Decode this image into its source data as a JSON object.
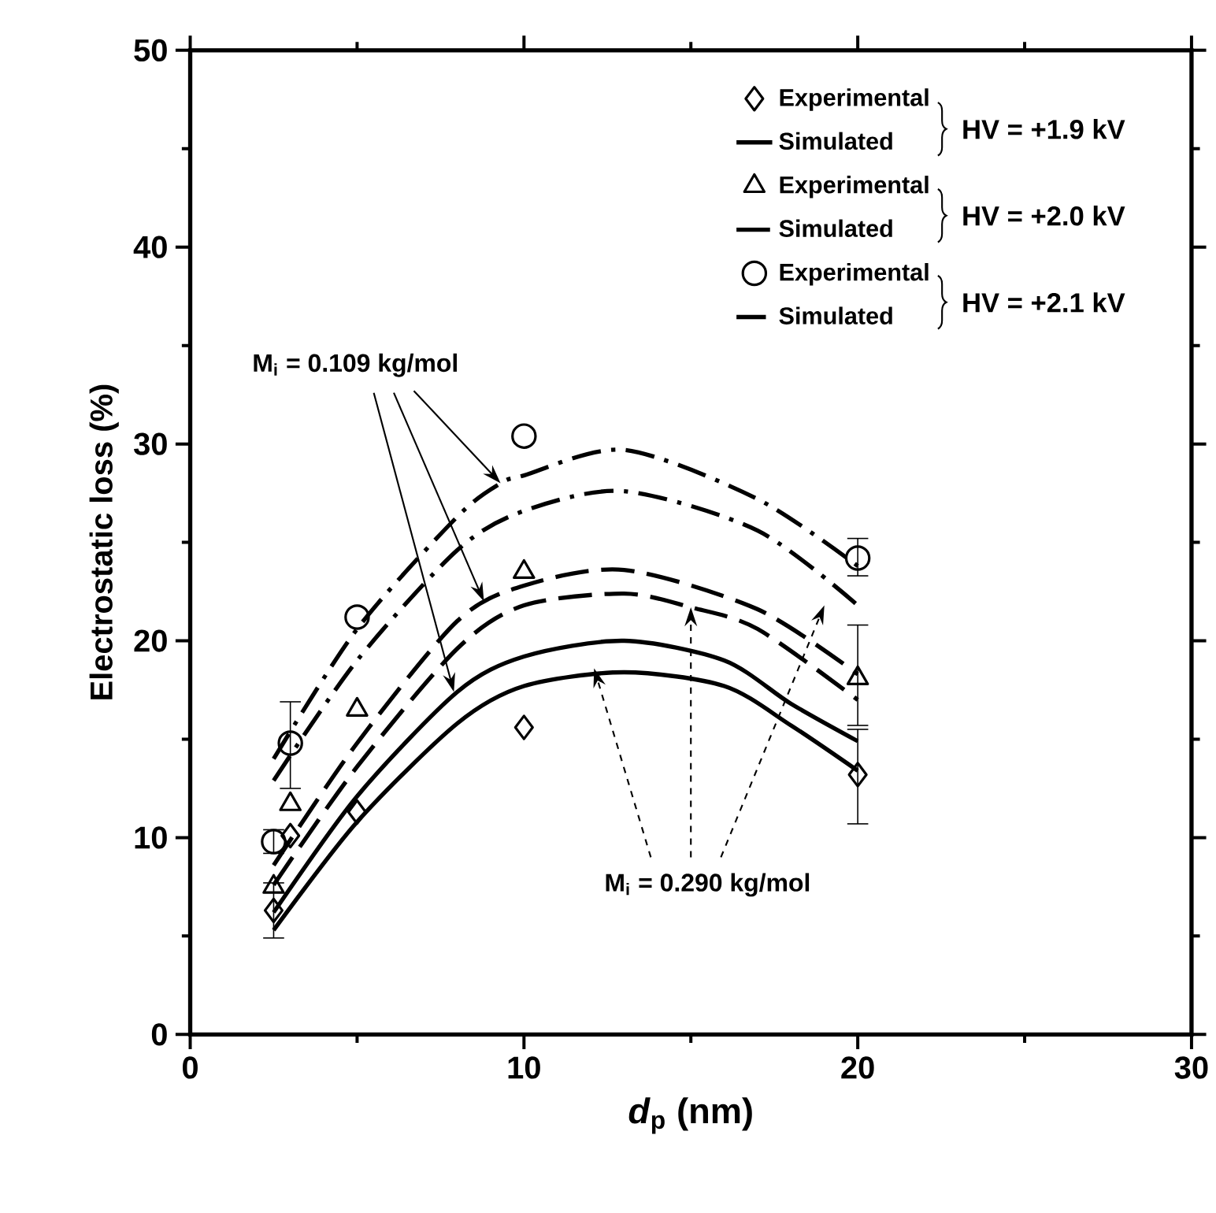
{
  "chart_data": {
    "type": "line",
    "xlabel": "*d*$_{p}$ (nm)",
    "ylabel": "Electrostatic loss (%)",
    "xlim": [
      0,
      30
    ],
    "ylim": [
      0,
      50
    ],
    "xticks": [
      0,
      10,
      20,
      30
    ],
    "yticks": [
      0,
      10,
      20,
      30,
      40,
      50
    ],
    "grid": false,
    "legend": "top right",
    "series": [
      {
        "name": "Experimental",
        "type": "scatter",
        "marker": "diamond",
        "color": "#000000",
        "x": [
          2.5,
          3,
          5,
          10,
          20
        ],
        "values": [
          6.3,
          10.1,
          11.3,
          15.6,
          13.2
        ],
        "errors": [
          [
            4.9,
            7.7
          ],
          null,
          null,
          null,
          [
            10.7,
            15.5
          ]
        ]
      },
      {
        "name": "Simulated",
        "marker": "none",
        "line_style": "solid",
        "color": "#000000",
        "x": [
          2.5,
          5,
          8,
          10,
          13,
          16,
          18,
          20
        ],
        "values": [
          6.2,
          12.1,
          17.4,
          19.2,
          20.0,
          19.0,
          16.8,
          14.9
        ]
      },
      {
        "name": "Experimental",
        "type": "scatter",
        "marker": "triangle",
        "color": "#000000",
        "x": [
          2.5,
          3,
          5,
          10,
          20
        ],
        "values": [
          7.5,
          11.7,
          16.5,
          23.5,
          18.1
        ],
        "errors": [
          null,
          null,
          null,
          null,
          [
            15.7,
            20.8
          ]
        ]
      },
      {
        "name": "Simulated",
        "marker": "none",
        "line_style": "dashed",
        "color": "#000000",
        "x": [
          2.5,
          5,
          8,
          10,
          13,
          17,
          20
        ],
        "values": [
          8.6,
          14.8,
          21.0,
          22.8,
          23.6,
          21.6,
          18.3
        ]
      },
      {
        "name": "Experimental",
        "type": "scatter",
        "marker": "circle",
        "color": "#000000",
        "x": [
          2.5,
          3,
          5,
          10,
          20
        ],
        "values": [
          9.8,
          14.8,
          21.2,
          30.4,
          24.2
        ],
        "errors": [
          [
            9.2,
            10.4
          ],
          [
            12.5,
            16.9
          ],
          null,
          null,
          [
            23.3,
            25.2
          ]
        ]
      },
      {
        "name": "Simulated",
        "marker": "none",
        "line_style": "dashdot",
        "color": "#000000",
        "x": [
          2.5,
          5,
          8,
          9.3,
          10,
          13,
          17,
          20
        ],
        "values": [
          14.0,
          20.6,
          26.3,
          28.0,
          28.4,
          29.7,
          27.2,
          23.8
        ]
      },
      {
        "marker": "none",
        "line_style": "solid",
        "color": "#000000",
        "x": [
          2.5,
          5,
          8,
          10,
          13,
          16,
          18,
          20
        ],
        "values": [
          5.3,
          10.8,
          15.8,
          17.7,
          18.4,
          17.7,
          15.7,
          13.4
        ]
      },
      {
        "marker": "none",
        "line_style": "dashed",
        "color": "#000000",
        "x": [
          2.5,
          5,
          8,
          10,
          13,
          15,
          17,
          20
        ],
        "values": [
          7.6,
          13.6,
          19.6,
          21.8,
          22.4,
          21.7,
          20.6,
          17.0
        ]
      },
      {
        "marker": "none",
        "line_style": "dashdot",
        "color": "#000000",
        "x": [
          2.5,
          5,
          8,
          10,
          13,
          17,
          20
        ],
        "values": [
          12.9,
          19.0,
          24.6,
          26.6,
          27.6,
          25.6,
          21.8
        ]
      }
    ],
    "annotations": [
      "HV = +1.9 kV",
      "HV = +2.0 kV",
      "HV = +2.1 kV",
      {
        "text": "M$_{i}$ = 0.109 kg/mol",
        "x": 9.3,
        "y": 28.0
      },
      {
        "text": "M$_{i}$ = 0.290 kg/mol",
        "x": 15,
        "y": 21.7
      }
    ]
  }
}
